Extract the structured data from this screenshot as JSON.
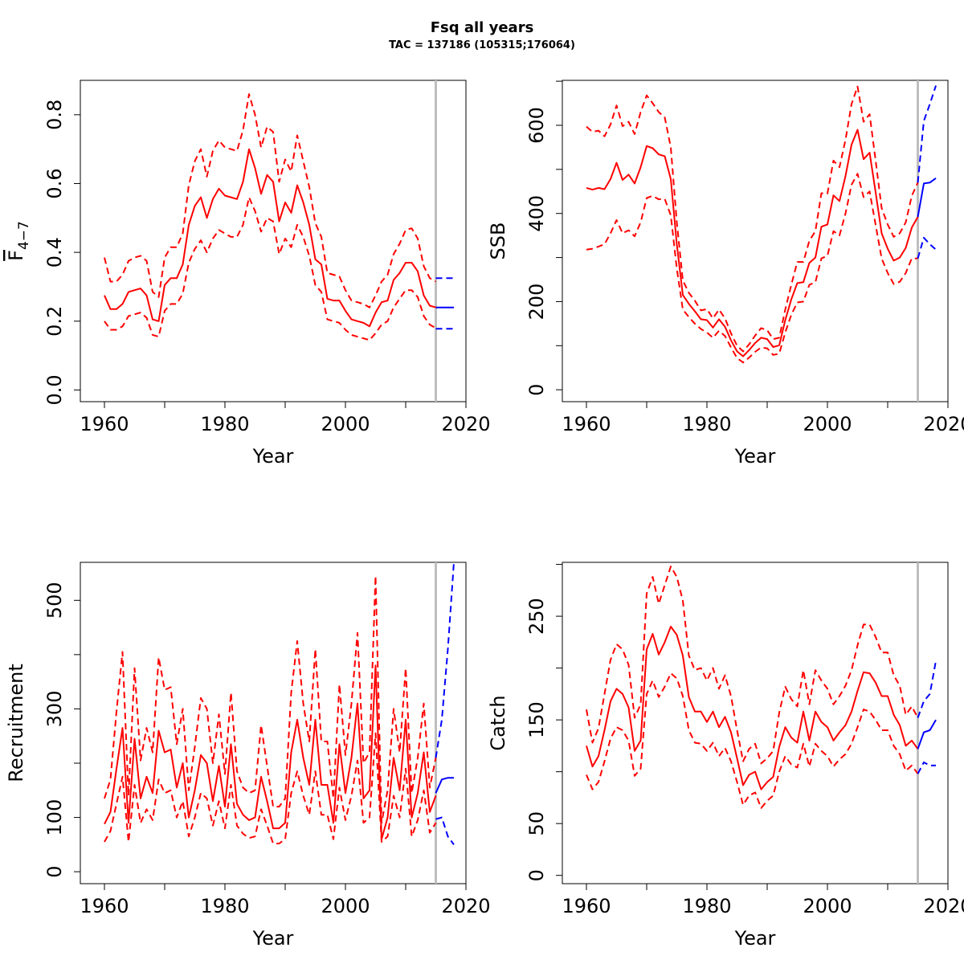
{
  "figure": {
    "title": "Fsq all years",
    "subtitle": "TAC = 137186 (105315;176064)"
  },
  "chart_data": [
    {
      "type": "line",
      "panel": "top-left",
      "xlabel": "Year",
      "ylabel": "F̄4−7",
      "ylabel_main": "F",
      "ylabel_sub": "4−7",
      "xlim": [
        1956,
        2020
      ],
      "ylim": [
        -0.034,
        0.9
      ],
      "xticks": [
        1960,
        1980,
        2000,
        2020
      ],
      "yticks": [
        0.0,
        0.2,
        0.4,
        0.6,
        0.8
      ],
      "ytick_labels": [
        "0.0",
        "0.2",
        "0.4",
        "0.6",
        "0.8"
      ],
      "vline_x": 2015,
      "colors": {
        "historic": "#ff0000",
        "forecast": "#0000ff",
        "vline": "#bebebe"
      },
      "series": [
        {
          "role": "historic-median",
          "style": "solid",
          "x_start": 1960,
          "values": [
            0.275,
            0.235,
            0.235,
            0.25,
            0.285,
            0.29,
            0.295,
            0.275,
            0.205,
            0.2,
            0.305,
            0.325,
            0.325,
            0.365,
            0.48,
            0.535,
            0.56,
            0.5,
            0.555,
            0.585,
            0.565,
            0.56,
            0.555,
            0.605,
            0.7,
            0.645,
            0.57,
            0.625,
            0.605,
            0.49,
            0.545,
            0.515,
            0.595,
            0.545,
            0.48,
            0.38,
            0.365,
            0.265,
            0.26,
            0.26,
            0.23,
            0.205,
            0.2,
            0.195,
            0.185,
            0.225,
            0.255,
            0.26,
            0.32,
            0.34,
            0.37,
            0.37,
            0.345,
            0.275,
            0.245,
            0.24
          ]
        },
        {
          "role": "historic-upper",
          "style": "dashed",
          "x_start": 1960,
          "values": [
            0.385,
            0.315,
            0.315,
            0.335,
            0.375,
            0.385,
            0.39,
            0.375,
            0.285,
            0.27,
            0.385,
            0.415,
            0.415,
            0.455,
            0.595,
            0.665,
            0.7,
            0.62,
            0.695,
            0.725,
            0.705,
            0.7,
            0.695,
            0.755,
            0.86,
            0.8,
            0.705,
            0.765,
            0.75,
            0.605,
            0.67,
            0.635,
            0.74,
            0.665,
            0.59,
            0.485,
            0.445,
            0.34,
            0.335,
            0.33,
            0.29,
            0.26,
            0.255,
            0.25,
            0.24,
            0.275,
            0.315,
            0.335,
            0.395,
            0.425,
            0.465,
            0.47,
            0.44,
            0.36,
            0.325,
            0.315
          ]
        },
        {
          "role": "historic-lower",
          "style": "dashed",
          "x_start": 1960,
          "values": [
            0.2,
            0.175,
            0.175,
            0.185,
            0.215,
            0.22,
            0.225,
            0.21,
            0.16,
            0.155,
            0.23,
            0.25,
            0.25,
            0.28,
            0.37,
            0.41,
            0.435,
            0.4,
            0.44,
            0.465,
            0.455,
            0.445,
            0.445,
            0.48,
            0.56,
            0.52,
            0.46,
            0.5,
            0.49,
            0.395,
            0.44,
            0.415,
            0.48,
            0.445,
            0.39,
            0.305,
            0.285,
            0.205,
            0.2,
            0.195,
            0.175,
            0.16,
            0.155,
            0.15,
            0.145,
            0.165,
            0.19,
            0.2,
            0.24,
            0.265,
            0.29,
            0.29,
            0.27,
            0.215,
            0.19,
            0.18
          ]
        },
        {
          "role": "forecast-median",
          "style": "solid",
          "x": [
            2015,
            2016,
            2017,
            2018
          ],
          "values": [
            0.24,
            0.24,
            0.24,
            0.24
          ]
        },
        {
          "role": "forecast-upper",
          "style": "dashed",
          "x": [
            2015,
            2016,
            2017,
            2018
          ],
          "values": [
            0.325,
            0.325,
            0.325,
            0.325
          ]
        },
        {
          "role": "forecast-lower",
          "style": "dashed",
          "x": [
            2015,
            2016,
            2017,
            2018
          ],
          "values": [
            0.178,
            0.178,
            0.178,
            0.178
          ]
        }
      ]
    },
    {
      "type": "line",
      "panel": "top-right",
      "xlabel": "Year",
      "ylabel": "SSB",
      "xlim": [
        1956,
        2020
      ],
      "ylim": [
        -27,
        702
      ],
      "xticks": [
        1960,
        1980,
        2000,
        2020
      ],
      "yticks": [
        0,
        200,
        400,
        600
      ],
      "ytick_labels": [
        "0",
        "200",
        "400",
        "600"
      ],
      "minor_yticks": [
        100,
        300,
        500,
        700
      ],
      "vline_x": 2015,
      "colors": {
        "historic": "#ff0000",
        "forecast": "#0000ff",
        "vline": "#bebebe"
      },
      "series": [
        {
          "role": "historic-median",
          "style": "solid",
          "x_start": 1960,
          "values": [
            458,
            454,
            458,
            455,
            478,
            515,
            476,
            488,
            468,
            505,
            553,
            548,
            534,
            530,
            478,
            330,
            215,
            195,
            178,
            160,
            158,
            141,
            160,
            143,
            112,
            87,
            76,
            90,
            106,
            118,
            115,
            97,
            101,
            158,
            205,
            242,
            244,
            288,
            300,
            370,
            375,
            441,
            428,
            485,
            556,
            590,
            523,
            538,
            448,
            355,
            320,
            293,
            300,
            322,
            368,
            392
          ]
        },
        {
          "role": "historic-upper",
          "style": "dashed",
          "x_start": 1960,
          "values": [
            597,
            585,
            588,
            575,
            602,
            645,
            598,
            608,
            580,
            630,
            668,
            650,
            630,
            618,
            550,
            380,
            248,
            220,
            202,
            180,
            183,
            162,
            182,
            162,
            128,
            100,
            87,
            103,
            123,
            140,
            135,
            115,
            118,
            182,
            238,
            290,
            290,
            338,
            360,
            446,
            445,
            520,
            505,
            567,
            648,
            688,
            608,
            625,
            520,
            412,
            375,
            347,
            355,
            380,
            440,
            470
          ]
        },
        {
          "role": "historic-lower",
          "style": "dashed",
          "x_start": 1960,
          "values": [
            318,
            320,
            325,
            330,
            355,
            385,
            355,
            362,
            348,
            380,
            435,
            440,
            432,
            433,
            396,
            275,
            182,
            165,
            150,
            138,
            130,
            118,
            134,
            122,
            96,
            72,
            62,
            73,
            86,
            96,
            94,
            79,
            82,
            130,
            170,
            198,
            200,
            238,
            244,
            298,
            304,
            360,
            350,
            400,
            465,
            490,
            437,
            450,
            374,
            298,
            265,
            240,
            245,
            265,
            298,
            298
          ]
        },
        {
          "role": "forecast-median",
          "style": "solid",
          "x": [
            2015,
            2016,
            2017,
            2018
          ],
          "values": [
            392,
            468,
            470,
            480
          ]
        },
        {
          "role": "forecast-upper",
          "style": "dashed",
          "x": [
            2015,
            2016,
            2017,
            2018
          ],
          "values": [
            470,
            610,
            648,
            690
          ]
        },
        {
          "role": "forecast-lower",
          "style": "dashed",
          "x": [
            2015,
            2016,
            2017,
            2018
          ],
          "values": [
            298,
            345,
            330,
            318
          ]
        }
      ]
    },
    {
      "type": "line",
      "panel": "bottom-left",
      "xlabel": "Year",
      "ylabel": "Recruitment",
      "xlim": [
        1956,
        2020
      ],
      "ylim": [
        -22,
        570
      ],
      "xticks": [
        1960,
        1980,
        2000,
        2020
      ],
      "yticks": [
        0,
        100,
        300,
        500
      ],
      "ytick_labels": [
        "0",
        "100",
        "300",
        "500"
      ],
      "minor_yticks": [
        200,
        400
      ],
      "vline_x": 2015,
      "colors": {
        "historic": "#ff0000",
        "forecast": "#0000ff",
        "vline": "#bebebe"
      },
      "series": [
        {
          "role": "historic-median",
          "style": "solid",
          "x_start": 1960,
          "values": [
            88,
            110,
            190,
            265,
            90,
            245,
            135,
            175,
            145,
            260,
            220,
            225,
            155,
            200,
            100,
            150,
            215,
            200,
            130,
            195,
            120,
            235,
            125,
            105,
            95,
            100,
            175,
            130,
            80,
            80,
            90,
            220,
            280,
            210,
            160,
            280,
            160,
            160,
            90,
            235,
            145,
            210,
            310,
            135,
            150,
            380,
            60,
            100,
            210,
            150,
            280,
            100,
            145,
            220,
            110,
            140
          ]
        },
        {
          "role": "historic-upper",
          "style": "dashed",
          "x_start": 1960,
          "values": [
            135,
            170,
            295,
            405,
            140,
            375,
            205,
            265,
            220,
            395,
            335,
            340,
            235,
            300,
            150,
            230,
            320,
            300,
            200,
            290,
            180,
            330,
            185,
            155,
            145,
            150,
            270,
            195,
            120,
            120,
            135,
            330,
            425,
            310,
            240,
            410,
            240,
            240,
            135,
            345,
            215,
            310,
            440,
            200,
            220,
            545,
            90,
            150,
            300,
            220,
            375,
            145,
            210,
            310,
            155,
            210
          ]
        },
        {
          "role": "historic-lower",
          "style": "dashed",
          "x_start": 1960,
          "values": [
            55,
            75,
            125,
            175,
            55,
            160,
            90,
            115,
            95,
            170,
            145,
            150,
            100,
            130,
            65,
            100,
            145,
            135,
            85,
            130,
            80,
            160,
            85,
            70,
            62,
            65,
            115,
            85,
            52,
            52,
            60,
            145,
            185,
            140,
            105,
            185,
            105,
            105,
            60,
            155,
            95,
            140,
            205,
            90,
            100,
            255,
            55,
            65,
            140,
            100,
            190,
            65,
            95,
            150,
            72,
            90
          ]
        },
        {
          "role": "forecast-median",
          "style": "solid",
          "x": [
            2015,
            2016,
            2017,
            2018
          ],
          "values": [
            145,
            170,
            173,
            173
          ]
        },
        {
          "role": "forecast-upper",
          "style": "dashed",
          "x": [
            2015,
            2016,
            2017,
            2018
          ],
          "values": [
            210,
            280,
            410,
            570
          ]
        },
        {
          "role": "forecast-lower",
          "style": "dashed",
          "x": [
            2015,
            2016,
            2017,
            2018
          ],
          "values": [
            97,
            100,
            65,
            50
          ]
        }
      ]
    },
    {
      "type": "line",
      "panel": "bottom-right",
      "xlabel": "Year",
      "ylabel": "Catch",
      "xlim": [
        1956,
        2020
      ],
      "ylim": [
        -8,
        302
      ],
      "xticks": [
        1960,
        1980,
        2000,
        2020
      ],
      "yticks": [
        0,
        50,
        150,
        250
      ],
      "ytick_labels": [
        "0",
        "50",
        "150",
        "250"
      ],
      "minor_yticks": [
        100,
        200,
        300
      ],
      "vline_x": 2015,
      "colors": {
        "historic": "#ff0000",
        "forecast": "#0000ff",
        "vline": "#bebebe"
      },
      "series": [
        {
          "role": "historic-median",
          "style": "solid",
          "x_start": 1960,
          "values": [
            125,
            105,
            115,
            140,
            168,
            180,
            175,
            162,
            120,
            130,
            218,
            233,
            213,
            225,
            240,
            232,
            212,
            172,
            158,
            158,
            148,
            158,
            143,
            153,
            138,
            113,
            87,
            97,
            100,
            83,
            90,
            95,
            124,
            143,
            133,
            128,
            158,
            130,
            158,
            148,
            143,
            130,
            138,
            145,
            158,
            178,
            196,
            195,
            186,
            173,
            173,
            155,
            145,
            125,
            130,
            122
          ]
        },
        {
          "role": "historic-upper",
          "style": "dashed",
          "x_start": 1960,
          "values": [
            160,
            128,
            142,
            175,
            208,
            223,
            218,
            203,
            152,
            165,
            272,
            288,
            262,
            280,
            298,
            288,
            265,
            212,
            198,
            200,
            188,
            200,
            180,
            193,
            173,
            140,
            110,
            122,
            127,
            108,
            113,
            120,
            157,
            182,
            170,
            163,
            198,
            165,
            198,
            188,
            180,
            165,
            173,
            183,
            198,
            222,
            242,
            242,
            230,
            215,
            215,
            193,
            183,
            155,
            163,
            152
          ]
        },
        {
          "role": "historic-lower",
          "style": "dashed",
          "x_start": 1960,
          "values": [
            97,
            83,
            90,
            110,
            132,
            143,
            140,
            130,
            96,
            103,
            175,
            188,
            172,
            182,
            195,
            190,
            173,
            140,
            128,
            127,
            120,
            128,
            115,
            123,
            110,
            90,
            68,
            77,
            80,
            65,
            72,
            77,
            100,
            115,
            107,
            104,
            127,
            105,
            127,
            120,
            115,
            105,
            112,
            117,
            127,
            143,
            160,
            158,
            150,
            140,
            140,
            125,
            117,
            101,
            106,
            98
          ]
        },
        {
          "role": "forecast-median",
          "style": "solid",
          "x": [
            2015,
            2016,
            2017,
            2018
          ],
          "values": [
            122,
            138,
            140,
            150
          ]
        },
        {
          "role": "forecast-upper",
          "style": "dashed",
          "x": [
            2015,
            2016,
            2017,
            2018
          ],
          "values": [
            152,
            168,
            175,
            207
          ]
        },
        {
          "role": "forecast-lower",
          "style": "dashed",
          "x": [
            2015,
            2016,
            2017,
            2018
          ],
          "values": [
            98,
            109,
            106,
            106
          ]
        }
      ]
    }
  ]
}
